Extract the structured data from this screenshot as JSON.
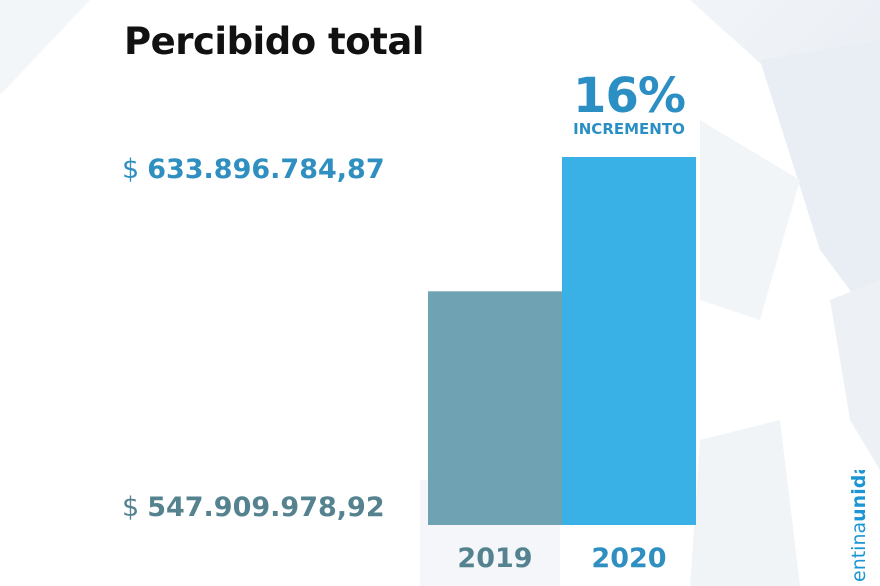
{
  "chart_data": {
    "type": "bar",
    "title": "Percibido total",
    "categories": [
      "2019",
      "2020"
    ],
    "values": [
      547909978.92,
      633896784.87
    ],
    "value_labels": [
      "547.909.978,92",
      "633.896.784,87"
    ],
    "currency_symbol": "$",
    "annotation": {
      "value": "16%",
      "label": "INCREMENTO"
    },
    "ylim": [
      0,
      640000000
    ],
    "grid": false,
    "legend": "none",
    "colors": [
      "#6fa3b3",
      "#39b1e6"
    ]
  },
  "brand": {
    "text_light": "entina",
    "text_bold": "unida"
  },
  "colors": {
    "accent_blue": "#2b8fc4",
    "teal": "#55828f",
    "bg_shape": "#eef2f6"
  }
}
